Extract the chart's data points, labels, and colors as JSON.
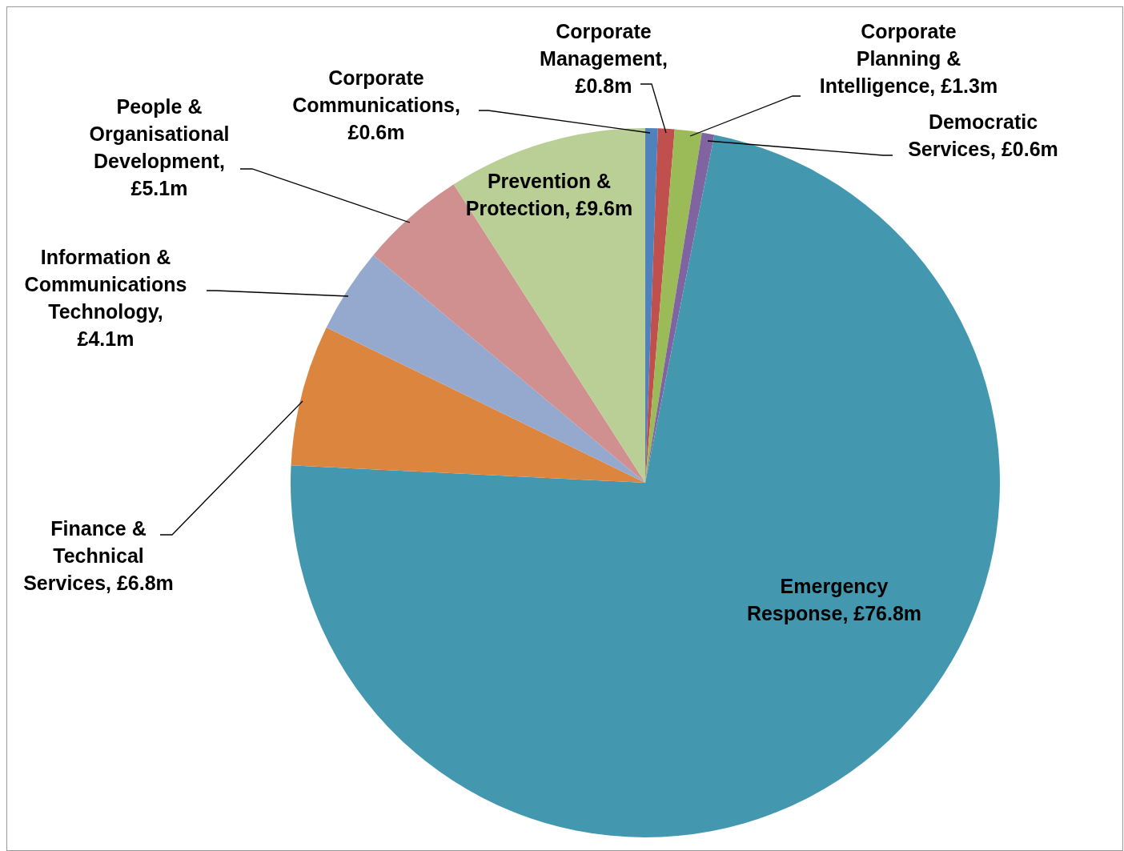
{
  "chart_data": {
    "type": "pie",
    "categories": [
      "Corporate Communications, £0.6m",
      "Corporate Management, £0.8m",
      "Corporate Planning & Intelligence, £1.3m",
      "Democratic Services, £0.6m",
      "Emergency Response, £76.8m",
      "Finance & Technical Services, £6.8m",
      "Information & Communications Technology, £4.1m",
      "People & Organisational Development, £5.1m",
      "Prevention & Protection, £9.6m"
    ],
    "values": [
      0.6,
      0.8,
      1.3,
      0.6,
      76.8,
      6.8,
      4.1,
      5.1,
      9.6
    ],
    "colors": [
      "#4f81bd",
      "#c0504d",
      "#9bbb59",
      "#8064a2",
      "#4398b0",
      "#dc853e",
      "#95a9cf",
      "#d09090",
      "#b9cf96"
    ]
  }
}
